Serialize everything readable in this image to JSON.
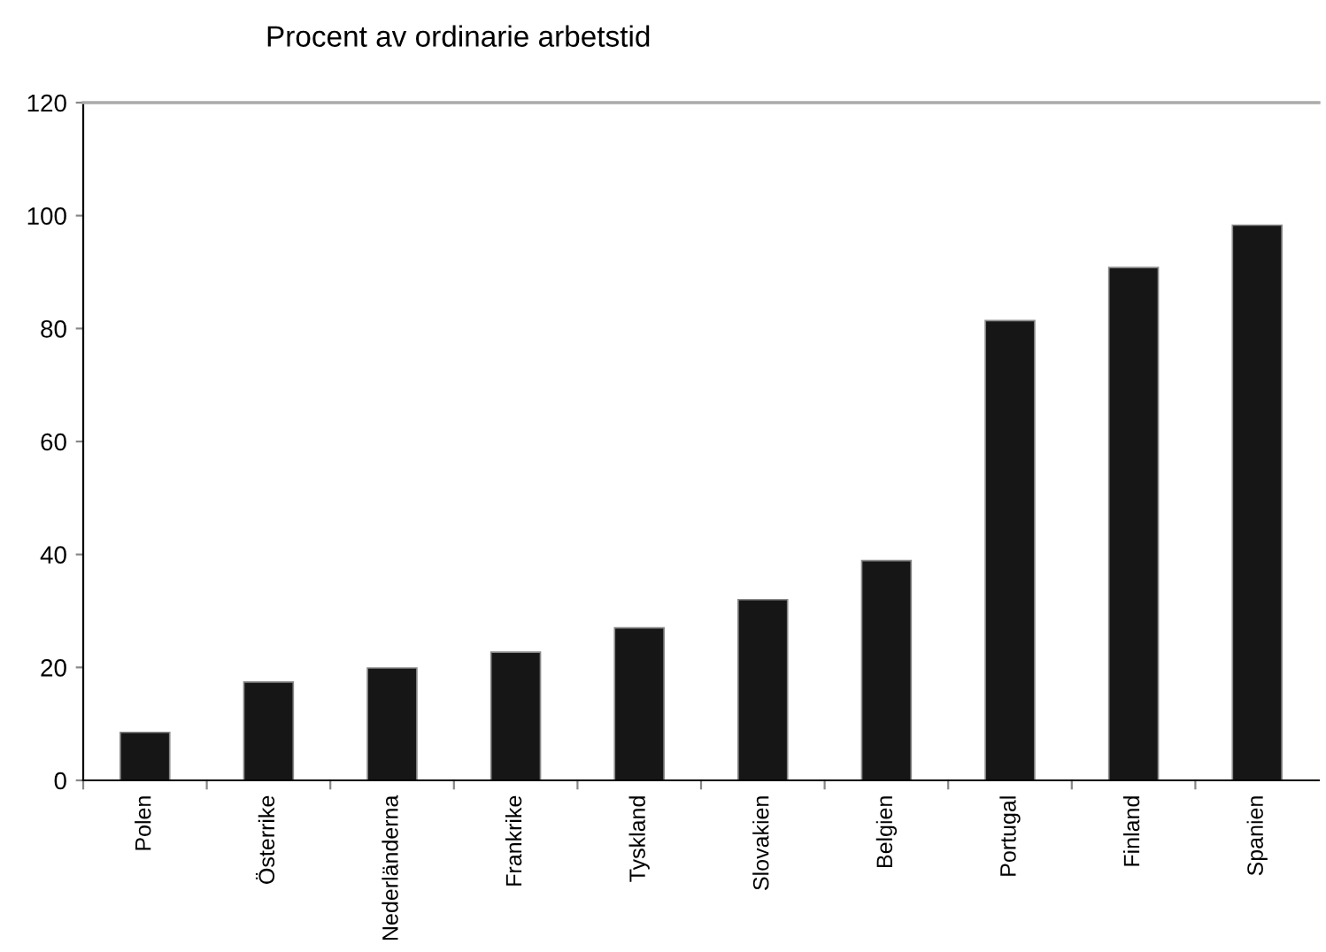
{
  "chart_data": {
    "type": "bar",
    "title": "Procent av ordinarie arbetstid",
    "categories": [
      "Polen",
      "Österrike",
      "Nederländerna",
      "Frankrike",
      "Tyskland",
      "Slovakien",
      "Belgien",
      "Portugal",
      "Finland",
      "Spanien"
    ],
    "values": [
      8.5,
      17.4,
      19.9,
      22.7,
      27.0,
      32.0,
      38.9,
      81.4,
      90.8,
      98.3
    ],
    "color": "#161616",
    "ylim": [
      0,
      120
    ],
    "yticks": [
      0,
      20,
      40,
      60,
      80,
      100,
      120
    ],
    "grid": false
  }
}
